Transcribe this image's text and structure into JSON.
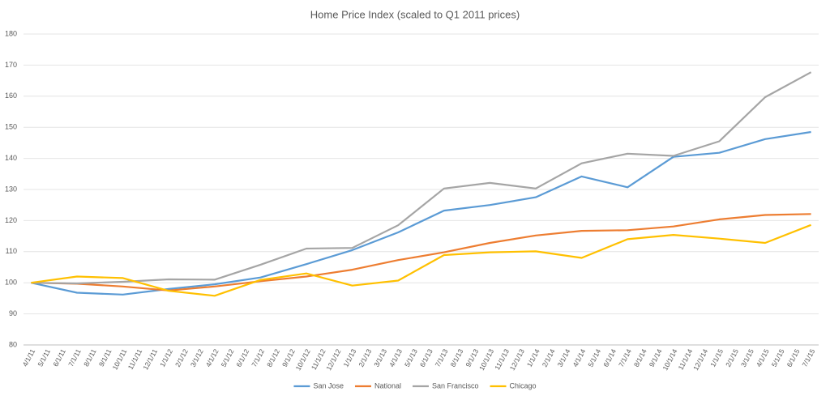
{
  "chart_data": {
    "type": "line",
    "title": "Home Price Index (scaled to Q1 2011 prices)",
    "x": [
      "4/1/11",
      "7/1/11",
      "10/1/11",
      "1/1/12",
      "4/1/12",
      "7/1/12",
      "10/1/12",
      "1/1/13",
      "4/1/13",
      "7/1/13",
      "10/1/13",
      "1/1/14",
      "4/1/14",
      "7/1/14",
      "10/1/14",
      "1/1/15",
      "4/1/15",
      "7/1/15"
    ],
    "xticks": [
      "4/1/11",
      "5/1/11",
      "6/1/11",
      "7/1/11",
      "8/1/11",
      "9/1/11",
      "10/1/11",
      "11/1/11",
      "12/1/11",
      "1/1/12",
      "2/1/12",
      "3/1/12",
      "4/1/12",
      "5/1/12",
      "6/1/12",
      "7/1/12",
      "8/1/12",
      "9/1/12",
      "10/1/12",
      "11/1/12",
      "12/1/12",
      "1/1/13",
      "2/1/13",
      "3/1/13",
      "4/1/13",
      "5/1/13",
      "6/1/13",
      "7/1/13",
      "8/1/13",
      "9/1/13",
      "10/1/13",
      "11/1/13",
      "12/1/13",
      "1/1/14",
      "2/1/14",
      "3/1/14",
      "4/1/14",
      "5/1/14",
      "6/1/14",
      "7/1/14",
      "8/1/14",
      "9/1/14",
      "10/1/14",
      "11/1/14",
      "12/1/14",
      "1/1/15",
      "2/1/15",
      "3/1/15",
      "4/1/15",
      "5/1/15",
      "6/1/15",
      "7/1/15"
    ],
    "series": [
      {
        "name": "San Jose",
        "color": "#5b9bd5",
        "values": [
          100,
          96.8,
          96.2,
          98,
          99.5,
          101.7,
          106,
          110.5,
          116.2,
          123.2,
          125,
          127.5,
          134.2,
          130.7,
          140.5,
          141.8,
          146.2,
          148.5
        ]
      },
      {
        "name": "National",
        "color": "#ed7d31",
        "values": [
          100,
          99.7,
          98.8,
          97.5,
          98.8,
          100.5,
          102,
          104.2,
          107.3,
          109.8,
          112.8,
          115.2,
          116.7,
          116.9,
          118.1,
          120.4,
          121.8,
          122.1
        ]
      },
      {
        "name": "San Francisco",
        "color": "#a5a5a5",
        "values": [
          100,
          99.8,
          100.3,
          101.1,
          101,
          105.8,
          111,
          111.2,
          118.5,
          130.3,
          132.1,
          130.3,
          138.4,
          141.5,
          140.8,
          145.5,
          159.7,
          167.7
        ]
      },
      {
        "name": "Chicago",
        "color": "#ffc000",
        "values": [
          100,
          102,
          101.5,
          97.4,
          95.8,
          100.9,
          103,
          99.1,
          100.7,
          108.9,
          109.8,
          110.1,
          108,
          114,
          115.4,
          114.2,
          112.8,
          118.6
        ]
      }
    ],
    "ylim": [
      80,
      180
    ],
    "yticks": [
      80,
      90,
      100,
      110,
      120,
      130,
      140,
      150,
      160,
      170,
      180
    ],
    "grid": true,
    "legend": "bottom"
  }
}
